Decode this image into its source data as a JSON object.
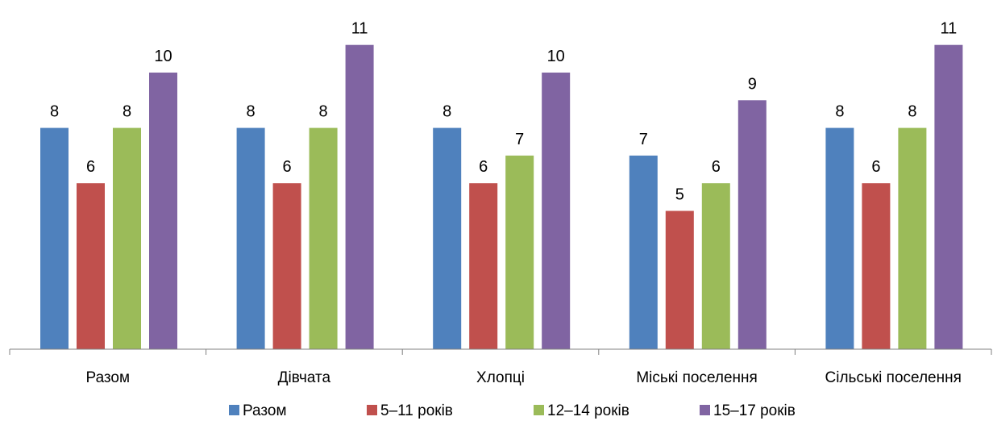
{
  "chart_data": {
    "type": "bar",
    "title": "",
    "xlabel": "",
    "ylabel": "",
    "ylim": [
      0,
      11
    ],
    "grid": false,
    "legend_position": "bottom",
    "categories": [
      "Разом",
      "Дівчата",
      "Хлопці",
      "Міські поселення",
      "Сільські поселення"
    ],
    "series": [
      {
        "name": "Разом",
        "color": "#4F81BD",
        "values": [
          8,
          8,
          8,
          7,
          8
        ]
      },
      {
        "name": "5–11 років",
        "color": "#C0504D",
        "values": [
          6,
          6,
          6,
          5,
          6
        ]
      },
      {
        "name": "12–14 років",
        "color": "#9BBB59",
        "values": [
          8,
          8,
          7,
          6,
          8
        ]
      },
      {
        "name": "15–17 років",
        "color": "#8064A2",
        "values": [
          10,
          11,
          10,
          9,
          11
        ]
      }
    ]
  }
}
